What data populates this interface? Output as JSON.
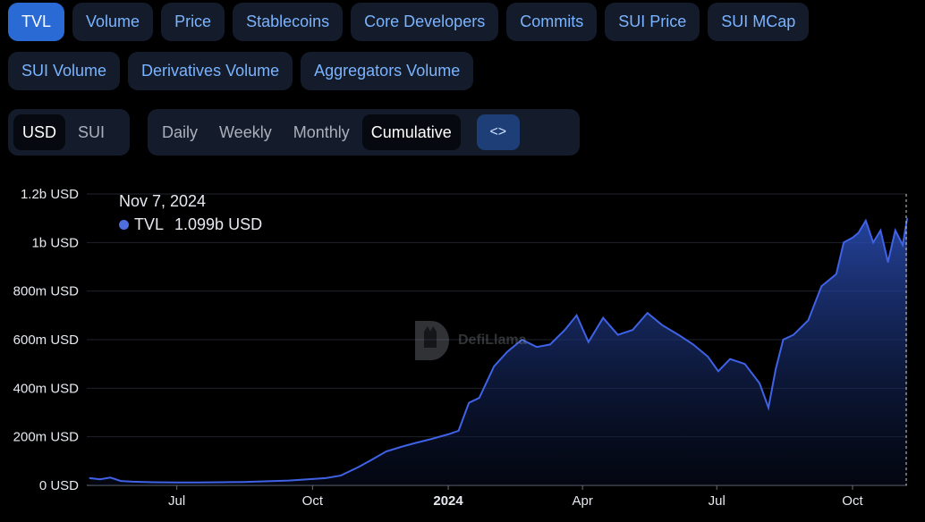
{
  "metric_tabs_row1": [
    "TVL",
    "Volume",
    "Price",
    "Stablecoins",
    "Core Developers",
    "Commits",
    "SUI Price",
    "SUI MCap"
  ],
  "metric_tabs_row2": [
    "SUI Volume",
    "Derivatives Volume",
    "Aggregators Volume"
  ],
  "active_metric": "TVL",
  "units": {
    "options": [
      "USD",
      "SUI"
    ],
    "active": "USD"
  },
  "period": {
    "options": [
      "Daily",
      "Weekly",
      "Monthly",
      "Cumulative"
    ],
    "active": "Cumulative",
    "embed_icon": "<>"
  },
  "tooltip": {
    "date": "Nov 7, 2024",
    "series": "TVL",
    "value": "1.099b USD"
  },
  "watermark": "DefiLlama",
  "colors": {
    "accent": "#2a6ad4",
    "line": "#3f62e6",
    "tab_text": "#7ab3ff",
    "background": "#000000"
  },
  "chart_data": {
    "type": "area",
    "series": [
      {
        "name": "TVL",
        "x": [
          "2023-05-03",
          "2023-05-10",
          "2023-05-17",
          "2023-05-24",
          "2023-06-01",
          "2023-06-15",
          "2023-07-01",
          "2023-07-15",
          "2023-08-01",
          "2023-08-15",
          "2023-09-01",
          "2023-09-15",
          "2023-10-01",
          "2023-10-10",
          "2023-10-20",
          "2023-11-01",
          "2023-11-10",
          "2023-11-20",
          "2023-12-01",
          "2023-12-10",
          "2023-12-20",
          "2024-01-01",
          "2024-01-08",
          "2024-01-15",
          "2024-01-22",
          "2024-02-01",
          "2024-02-10",
          "2024-02-20",
          "2024-03-01",
          "2024-03-10",
          "2024-03-20",
          "2024-03-28",
          "2024-04-05",
          "2024-04-15",
          "2024-04-25",
          "2024-05-05",
          "2024-05-15",
          "2024-05-25",
          "2024-06-05",
          "2024-06-15",
          "2024-06-25",
          "2024-07-02",
          "2024-07-10",
          "2024-07-20",
          "2024-07-30",
          "2024-08-05",
          "2024-08-10",
          "2024-08-15",
          "2024-08-22",
          "2024-09-01",
          "2024-09-10",
          "2024-09-20",
          "2024-09-25",
          "2024-10-01",
          "2024-10-05",
          "2024-10-10",
          "2024-10-15",
          "2024-10-20",
          "2024-10-25",
          "2024-10-30",
          "2024-11-04",
          "2024-11-07"
        ],
        "y": [
          30,
          25,
          32,
          18,
          15,
          13,
          12,
          12,
          13,
          14,
          17,
          20,
          26,
          30,
          40,
          75,
          105,
          140,
          160,
          175,
          190,
          210,
          225,
          340,
          360,
          490,
          550,
          600,
          570,
          580,
          640,
          700,
          590,
          690,
          620,
          640,
          710,
          660,
          620,
          580,
          530,
          470,
          520,
          500,
          420,
          320,
          480,
          600,
          620,
          680,
          820,
          870,
          1000,
          1020,
          1040,
          1090,
          1000,
          1050,
          920,
          1050,
          990,
          1099
        ]
      }
    ],
    "xticks": [
      "Jul",
      "Oct",
      "2024",
      "Apr",
      "Jul",
      "Oct"
    ],
    "yticks": [
      "0 USD",
      "200m USD",
      "400m USD",
      "600m USD",
      "800m USD",
      "1b USD",
      "1.2b USD"
    ],
    "ylim": [
      0,
      1200
    ],
    "unit": "USD",
    "grid": true,
    "legend": "none"
  }
}
